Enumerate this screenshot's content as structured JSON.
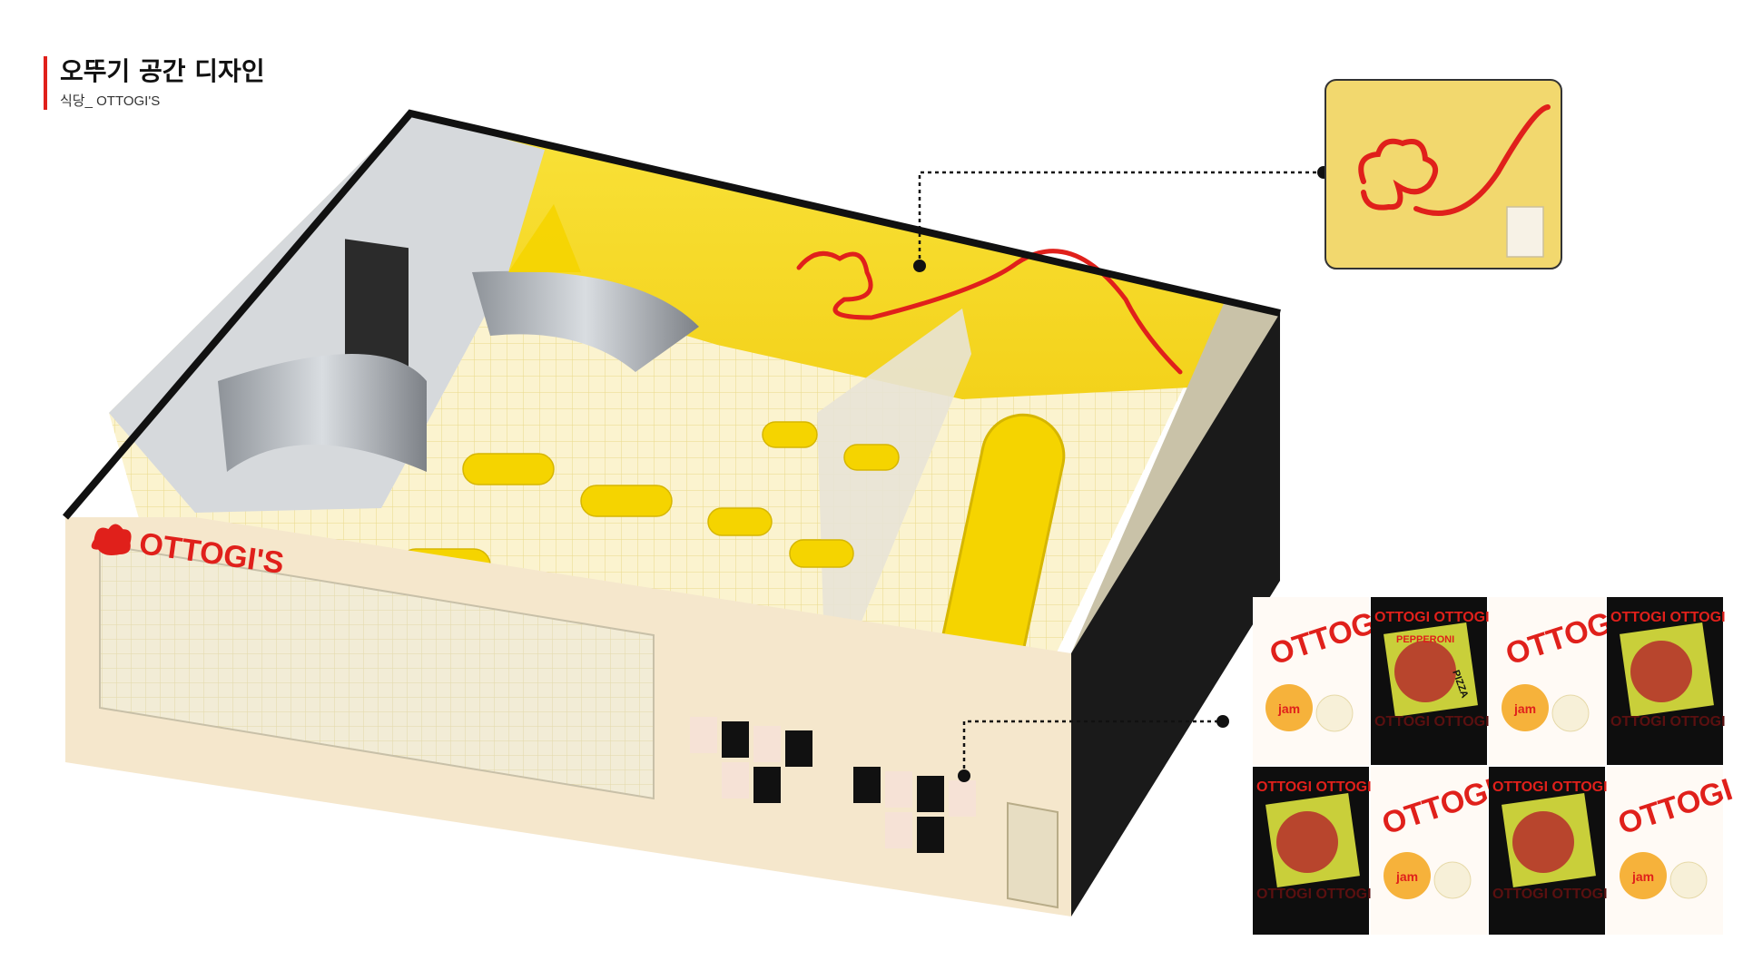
{
  "header": {
    "title": "오뚜기 공간 디자인",
    "subtitle": "식당_ OTTOGI'S"
  },
  "store": {
    "sign_text": "OTTOGI'S"
  },
  "posters": {
    "brand_word": "OTTOGI",
    "brand_repeat": "OTTOGI OTTOGI",
    "pizza_top": "PEPPERONI",
    "pizza_side": "PIZZA",
    "jar_label": "jam"
  },
  "colors": {
    "brand_red": "#e0201b",
    "brand_yellow": "#f5d400",
    "wall_yellow": "#f7e24a",
    "cream": "#f5e7cc",
    "black": "#111111"
  },
  "icons": {
    "callout_dot": "callout-dot-icon",
    "ottogi_cloud": "ottogi-cloud-logo-icon"
  }
}
